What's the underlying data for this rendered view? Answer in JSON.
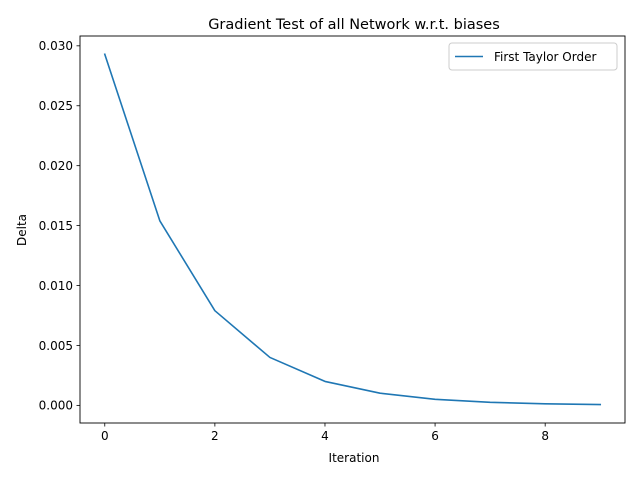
{
  "chart_data": {
    "type": "line",
    "title": "Gradient Test of all Network w.r.t. biases",
    "xlabel": "Iteration",
    "ylabel": "Delta",
    "xlim": [
      -0.45,
      9.45
    ],
    "ylim": [
      -0.00147,
      0.03082
    ],
    "xticks": [
      0,
      2,
      4,
      6,
      8
    ],
    "xtick_labels": [
      "0",
      "2",
      "4",
      "6",
      "8"
    ],
    "yticks": [
      0.0,
      0.005,
      0.01,
      0.015,
      0.02,
      0.025,
      0.03
    ],
    "ytick_labels": [
      "0.000",
      "0.005",
      "0.010",
      "0.015",
      "0.020",
      "0.025",
      "0.030"
    ],
    "grid": false,
    "legend": {
      "position": "top-right"
    },
    "series": [
      {
        "name": "First Taylor Order",
        "color": "#1f77b4",
        "x": [
          0,
          1,
          2,
          3,
          4,
          5,
          6,
          7,
          8,
          9
        ],
        "y": [
          0.0293,
          0.0154,
          0.0079,
          0.004,
          0.002,
          0.00102,
          0.00051,
          0.00026,
          0.00013,
          7e-05
        ]
      }
    ]
  }
}
